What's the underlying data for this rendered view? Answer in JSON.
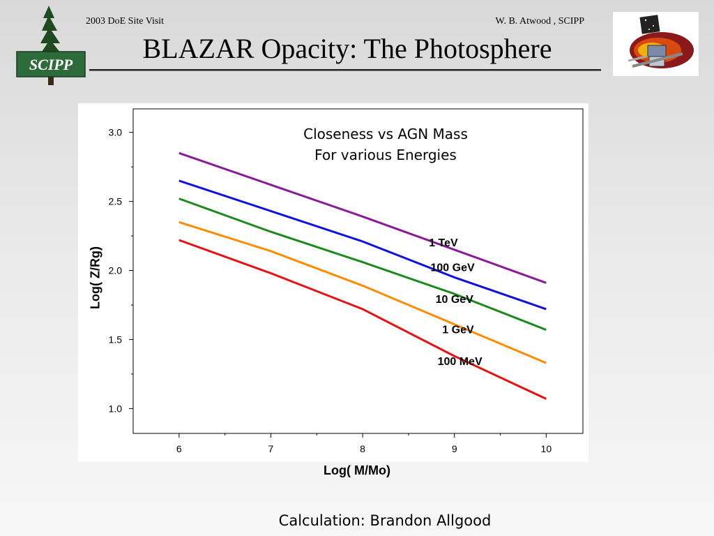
{
  "header": {
    "left_text": "2003 DoE Site Visit",
    "right_text": "W. B. Atwood , SCIPP"
  },
  "slide": {
    "title": "BLAZAR Opacity: The Photosphere",
    "caption": "Calculation: Brandon Allgood"
  },
  "logos": {
    "left": {
      "text": "SCIPP",
      "icon": "pine-tree-icon",
      "colors": {
        "tree": "#1f4a1f",
        "badge": "#2e6b3a"
      }
    },
    "right": {
      "icon": "glast-satellite-icon"
    }
  },
  "chart_data": {
    "type": "line",
    "title_lines": [
      "Closeness  vs AGN Mass",
      "For various Energies"
    ],
    "xlabel": "Log( M/Mo)",
    "ylabel": "Log( Z/Rg)",
    "xlim": [
      5.5,
      10.4
    ],
    "ylim": [
      0.82,
      3.17
    ],
    "xticks": [
      6,
      7,
      8,
      9,
      10
    ],
    "yticks": [
      1.0,
      1.5,
      2.0,
      2.5,
      3.0
    ],
    "xtick_labels": [
      "6",
      "7",
      "8",
      "9",
      "10"
    ],
    "ytick_labels": [
      "1.0",
      "1.5",
      "2.0",
      "2.5",
      "3.0"
    ],
    "grid": false,
    "legend": "inline labels",
    "series": [
      {
        "name": "1 TeV",
        "color": "#8b1a9b",
        "x": [
          6,
          7,
          8,
          9,
          10
        ],
        "y": [
          2.85,
          2.62,
          2.39,
          2.15,
          1.91
        ]
      },
      {
        "name": "100 GeV",
        "color": "#1010e0",
        "x": [
          6,
          7,
          8,
          9,
          10
        ],
        "y": [
          2.65,
          2.43,
          2.21,
          1.95,
          1.72
        ]
      },
      {
        "name": "10 GeV",
        "color": "#1a8a1a",
        "x": [
          6,
          7,
          8,
          9,
          10
        ],
        "y": [
          2.52,
          2.28,
          2.06,
          1.83,
          1.57
        ]
      },
      {
        "name": "1 GeV",
        "color": "#ff8c00",
        "x": [
          6,
          7,
          8,
          9,
          10
        ],
        "y": [
          2.35,
          2.14,
          1.89,
          1.61,
          1.33
        ]
      },
      {
        "name": "100 MeV",
        "color": "#e81010",
        "x": [
          6,
          7,
          8,
          9,
          10
        ],
        "y": [
          2.22,
          1.98,
          1.72,
          1.38,
          1.07
        ]
      }
    ],
    "series_label_pos": [
      {
        "x": 8.88,
        "y": 2.2
      },
      {
        "x": 8.98,
        "y": 2.02
      },
      {
        "x": 9.0,
        "y": 1.79
      },
      {
        "x": 9.04,
        "y": 1.57
      },
      {
        "x": 9.06,
        "y": 1.34
      }
    ]
  }
}
